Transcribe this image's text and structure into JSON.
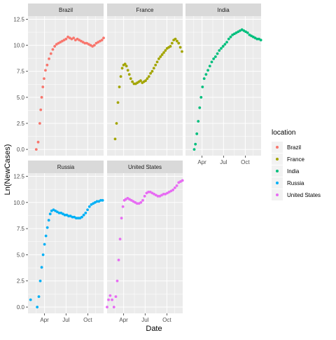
{
  "chart_data": {
    "type": "scatter",
    "faceted": true,
    "xlabel": "Date",
    "ylabel": "Ln(NewCases)",
    "ylim": [
      -0.6,
      12.8
    ],
    "yticks": [
      0.0,
      2.5,
      5.0,
      7.5,
      10.0,
      12.5
    ],
    "ytick_labels": [
      "0.0",
      "2.5",
      "5.0",
      "7.5",
      "10.0",
      "12.5"
    ],
    "xlim": [
      "2020-01-22",
      "2020-12-07"
    ],
    "xticks": [
      "2020-04-01",
      "2020-07-01",
      "2020-10-01"
    ],
    "xtick_labels": [
      "Apr",
      "Jul",
      "Oct"
    ],
    "legend": {
      "title": "location",
      "position": "right",
      "entries": [
        "Brazil",
        "France",
        "India",
        "Russia",
        "United States"
      ]
    },
    "colors": {
      "Brazil": "#F8766D",
      "France": "#A3A500",
      "India": "#00BF7D",
      "Russia": "#00B0F6",
      "United States": "#E76BF3"
    },
    "panel_background": "#EBEBEB",
    "strip_background": "#D9D9D9",
    "grid": true,
    "series": [
      {
        "name": "Brazil",
        "x": [
          "2020-02-26",
          "2020-03-05",
          "2020-03-12",
          "2020-03-16",
          "2020-03-20",
          "2020-03-25",
          "2020-03-30",
          "2020-04-05",
          "2020-04-12",
          "2020-04-20",
          "2020-04-28",
          "2020-05-06",
          "2020-05-14",
          "2020-05-22",
          "2020-05-30",
          "2020-06-07",
          "2020-06-15",
          "2020-06-23",
          "2020-07-01",
          "2020-07-09",
          "2020-07-17",
          "2020-07-25",
          "2020-08-02",
          "2020-08-10",
          "2020-08-18",
          "2020-08-26",
          "2020-09-03",
          "2020-09-11",
          "2020-09-19",
          "2020-09-27",
          "2020-10-05",
          "2020-10-13",
          "2020-10-21",
          "2020-10-29",
          "2020-11-06",
          "2020-11-14",
          "2020-11-22",
          "2020-11-30",
          "2020-12-07"
        ],
        "y": [
          0.0,
          0.7,
          2.5,
          3.8,
          5.0,
          6.0,
          6.8,
          7.6,
          8.1,
          8.7,
          9.2,
          9.6,
          9.9,
          10.1,
          10.2,
          10.3,
          10.4,
          10.5,
          10.6,
          10.8,
          10.7,
          10.6,
          10.7,
          10.5,
          10.6,
          10.5,
          10.4,
          10.3,
          10.2,
          10.2,
          10.1,
          10.0,
          9.9,
          10.0,
          10.2,
          10.3,
          10.4,
          10.5,
          10.7
        ]
      },
      {
        "name": "France",
        "x": [
          "2020-02-25",
          "2020-03-02",
          "2020-03-08",
          "2020-03-14",
          "2020-03-20",
          "2020-03-26",
          "2020-04-01",
          "2020-04-07",
          "2020-04-13",
          "2020-04-19",
          "2020-04-25",
          "2020-05-01",
          "2020-05-08",
          "2020-05-15",
          "2020-05-22",
          "2020-05-29",
          "2020-06-05",
          "2020-06-12",
          "2020-06-19",
          "2020-06-26",
          "2020-07-03",
          "2020-07-10",
          "2020-07-17",
          "2020-07-24",
          "2020-07-31",
          "2020-08-07",
          "2020-08-14",
          "2020-08-21",
          "2020-08-28",
          "2020-09-04",
          "2020-09-11",
          "2020-09-18",
          "2020-09-25",
          "2020-10-02",
          "2020-10-09",
          "2020-10-16",
          "2020-10-23",
          "2020-10-30",
          "2020-11-06",
          "2020-11-13",
          "2020-11-20",
          "2020-11-27",
          "2020-12-04"
        ],
        "y": [
          1.0,
          2.5,
          4.5,
          6.0,
          7.0,
          7.8,
          8.1,
          8.2,
          8.0,
          7.6,
          7.2,
          6.8,
          6.5,
          6.3,
          6.3,
          6.4,
          6.5,
          6.6,
          6.4,
          6.5,
          6.6,
          6.8,
          7.0,
          7.3,
          7.5,
          7.8,
          8.1,
          8.4,
          8.7,
          8.9,
          9.1,
          9.3,
          9.5,
          9.7,
          9.8,
          9.9,
          10.2,
          10.5,
          10.6,
          10.4,
          10.2,
          9.8,
          9.4
        ]
      },
      {
        "name": "India",
        "x": [
          "2020-02-28",
          "2020-03-04",
          "2020-03-10",
          "2020-03-16",
          "2020-03-22",
          "2020-03-28",
          "2020-04-03",
          "2020-04-10",
          "2020-04-18",
          "2020-04-26",
          "2020-05-04",
          "2020-05-12",
          "2020-05-20",
          "2020-05-28",
          "2020-06-05",
          "2020-06-13",
          "2020-06-21",
          "2020-06-29",
          "2020-07-07",
          "2020-07-15",
          "2020-07-23",
          "2020-07-31",
          "2020-08-08",
          "2020-08-16",
          "2020-08-24",
          "2020-09-01",
          "2020-09-09",
          "2020-09-17",
          "2020-09-25",
          "2020-10-03",
          "2020-10-11",
          "2020-10-19",
          "2020-10-27",
          "2020-11-04",
          "2020-11-12",
          "2020-11-20",
          "2020-11-28",
          "2020-12-06"
        ],
        "y": [
          0.0,
          0.5,
          1.5,
          2.7,
          4.0,
          5.0,
          6.0,
          6.8,
          7.2,
          7.6,
          8.0,
          8.4,
          8.7,
          8.9,
          9.2,
          9.5,
          9.7,
          9.9,
          10.1,
          10.3,
          10.6,
          10.8,
          11.0,
          11.1,
          11.2,
          11.3,
          11.4,
          11.5,
          11.4,
          11.3,
          11.2,
          11.0,
          10.9,
          10.8,
          10.7,
          10.6,
          10.6,
          10.5
        ]
      },
      {
        "name": "Russia",
        "x": [
          "2020-02-02",
          "2020-03-01",
          "2020-03-08",
          "2020-03-14",
          "2020-03-20",
          "2020-03-26",
          "2020-04-01",
          "2020-04-07",
          "2020-04-13",
          "2020-04-19",
          "2020-04-25",
          "2020-05-01",
          "2020-05-09",
          "2020-05-17",
          "2020-05-25",
          "2020-06-02",
          "2020-06-10",
          "2020-06-18",
          "2020-06-26",
          "2020-07-04",
          "2020-07-12",
          "2020-07-20",
          "2020-07-28",
          "2020-08-05",
          "2020-08-13",
          "2020-08-21",
          "2020-08-29",
          "2020-09-06",
          "2020-09-14",
          "2020-09-22",
          "2020-09-30",
          "2020-10-08",
          "2020-10-16",
          "2020-10-24",
          "2020-11-01",
          "2020-11-09",
          "2020-11-17",
          "2020-11-25",
          "2020-12-03"
        ],
        "y": [
          0.7,
          0.0,
          1.0,
          2.5,
          3.8,
          5.0,
          6.0,
          6.8,
          7.6,
          8.3,
          8.9,
          9.2,
          9.3,
          9.2,
          9.1,
          9.0,
          9.0,
          8.9,
          8.8,
          8.8,
          8.7,
          8.7,
          8.6,
          8.6,
          8.5,
          8.5,
          8.5,
          8.6,
          8.8,
          9.0,
          9.3,
          9.6,
          9.8,
          9.9,
          10.0,
          10.1,
          10.1,
          10.2,
          10.2
        ]
      },
      {
        "name": "United States",
        "x": [
          "2020-01-22",
          "2020-01-28",
          "2020-02-04",
          "2020-02-12",
          "2020-02-20",
          "2020-02-28",
          "2020-03-05",
          "2020-03-11",
          "2020-03-17",
          "2020-03-23",
          "2020-03-29",
          "2020-04-04",
          "2020-04-10",
          "2020-04-18",
          "2020-04-26",
          "2020-05-04",
          "2020-05-12",
          "2020-05-20",
          "2020-05-28",
          "2020-06-05",
          "2020-06-13",
          "2020-06-21",
          "2020-06-29",
          "2020-07-07",
          "2020-07-15",
          "2020-07-23",
          "2020-07-31",
          "2020-08-08",
          "2020-08-16",
          "2020-08-24",
          "2020-09-01",
          "2020-09-09",
          "2020-09-17",
          "2020-09-25",
          "2020-10-03",
          "2020-10-11",
          "2020-10-19",
          "2020-10-27",
          "2020-11-04",
          "2020-11-12",
          "2020-11-20",
          "2020-11-28",
          "2020-12-06"
        ],
        "y": [
          0.0,
          0.7,
          1.1,
          0.7,
          0.0,
          1.0,
          2.5,
          4.5,
          6.5,
          8.5,
          9.6,
          10.2,
          10.3,
          10.4,
          10.3,
          10.2,
          10.1,
          10.0,
          9.9,
          9.9,
          10.0,
          10.2,
          10.6,
          10.9,
          11.0,
          11.0,
          10.9,
          10.8,
          10.7,
          10.6,
          10.6,
          10.7,
          10.8,
          10.8,
          10.9,
          11.0,
          11.1,
          11.2,
          11.4,
          11.6,
          11.9,
          12.0,
          12.1
        ]
      }
    ]
  }
}
